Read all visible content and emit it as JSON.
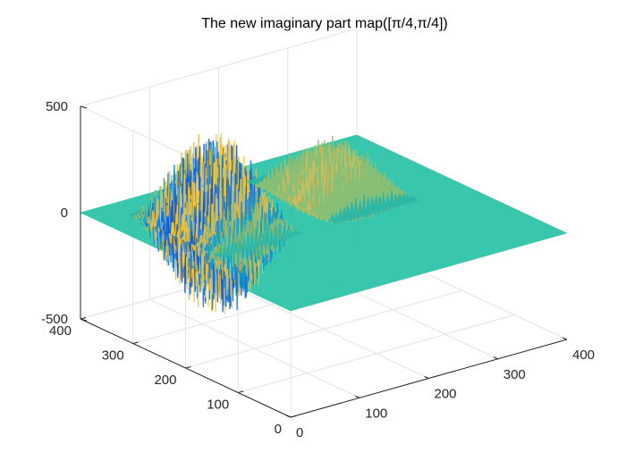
{
  "chart_data": {
    "type": "surface3d",
    "title": "The new imaginary part map([π/4,π/4])",
    "xlabel": "",
    "ylabel": "",
    "zlabel": "",
    "xlim": [
      0,
      400
    ],
    "ylim": [
      0,
      400
    ],
    "zlim": [
      -500,
      500
    ],
    "x_ticks": [
      0,
      100,
      200,
      300,
      400
    ],
    "y_ticks": [
      0,
      100,
      200,
      300,
      400
    ],
    "z_ticks": [
      -500,
      0,
      500
    ],
    "grid": true,
    "colormap": "parula",
    "colors": [
      "#352a87",
      "#0f5cdd",
      "#1481d6",
      "#06a4ca",
      "#2eb7a4",
      "#87bf77",
      "#d1bb59",
      "#fec832",
      "#f9fb0e"
    ],
    "baseline_color": "#2ec4a8",
    "lobes": [
      {
        "x_range": [
          40,
          160
        ],
        "y_range": [
          190,
          360
        ],
        "z_max": 450,
        "z_min": -450,
        "note_side": "left"
      },
      {
        "x_range": [
          210,
          330
        ],
        "y_range": [
          190,
          360
        ],
        "z_max": 250,
        "z_min": -130,
        "note_side": "right"
      }
    ]
  }
}
